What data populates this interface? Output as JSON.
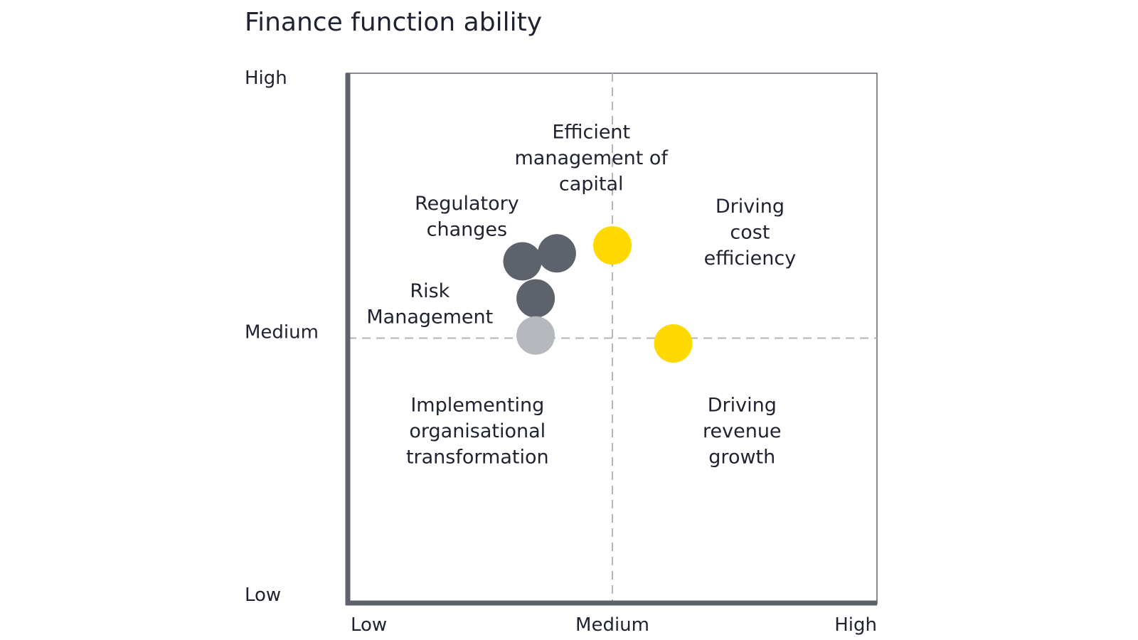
{
  "chart_data": {
    "type": "scatter",
    "title": "Finance function ability",
    "xlabel": "",
    "ylabel": "",
    "xlim": [
      0,
      2
    ],
    "ylim": [
      0,
      2
    ],
    "grid": false,
    "reference_lines": {
      "x": 1,
      "y": 1
    },
    "x_tick_labels": [
      "Low",
      "Medium",
      "High"
    ],
    "y_tick_labels": [
      "Low",
      "Medium",
      "High"
    ],
    "colors": {
      "dark": "#5e626d",
      "light": "#b5b9bd",
      "yellow": "#ffd900",
      "axis": "#5e626d",
      "reference": "#b5b5b5"
    },
    "points": [
      {
        "x": 0.66,
        "y": 1.29,
        "color": "dark"
      },
      {
        "x": 0.79,
        "y": 1.32,
        "color": "dark"
      },
      {
        "x": 0.71,
        "y": 1.15,
        "color": "dark"
      },
      {
        "x": 0.71,
        "y": 1.01,
        "color": "light"
      },
      {
        "x": 1.0,
        "y": 1.35,
        "color": "yellow"
      },
      {
        "x": 1.23,
        "y": 0.98,
        "color": "yellow"
      }
    ],
    "annotations": [
      {
        "lines": [
          "Efficient",
          "management of",
          "capital"
        ],
        "x": 0.92,
        "y": 1.68
      },
      {
        "lines": [
          "Regulatory",
          "changes"
        ],
        "x": 0.45,
        "y": 1.46
      },
      {
        "lines": [
          "Risk",
          "Management"
        ],
        "x": 0.31,
        "y": 1.13
      },
      {
        "lines": [
          "Driving",
          "cost",
          "efficiency"
        ],
        "x": 1.52,
        "y": 1.4
      },
      {
        "lines": [
          "Implementing",
          "organisational",
          "transformation"
        ],
        "x": 0.49,
        "y": 0.65
      },
      {
        "lines": [
          "Driving",
          "revenue",
          "growth"
        ],
        "x": 1.49,
        "y": 0.65
      }
    ]
  }
}
